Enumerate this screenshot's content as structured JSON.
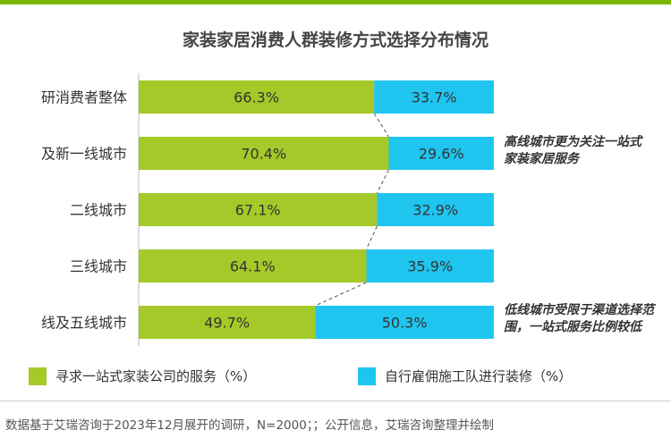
{
  "chart_data": {
    "type": "bar",
    "stacked": true,
    "orientation": "horizontal",
    "title": "家装家居消费人群装修方式选择分布情况",
    "categories": [
      "研消费者整体",
      "及新一线城市",
      "二线城市",
      "三线城市",
      "线及五线城市"
    ],
    "series": [
      {
        "name": "寻求一站式家装公司的服务（%）",
        "color": "#a5c928",
        "values": [
          66.3,
          70.4,
          67.1,
          64.1,
          49.7
        ],
        "labels": [
          "66.3%",
          "70.4%",
          "67.1%",
          "64.1%",
          "49.7%"
        ]
      },
      {
        "name": "自行雇佣施工队进行装修（%）",
        "color": "#1fc5ef",
        "values": [
          33.7,
          29.6,
          32.9,
          35.9,
          50.3
        ],
        "labels": [
          "33.7%",
          "29.6%",
          "32.9%",
          "35.9%",
          "50.3%"
        ]
      }
    ],
    "xlim": [
      0,
      100
    ],
    "grid": false,
    "legend_position": "bottom"
  },
  "annotations": [
    {
      "line1": "高线城市更为关注一站式",
      "line2": "家装家居服务"
    },
    {
      "line1": "低线城市受限于渠道选择范",
      "line2": "围，一站式服务比例较低"
    }
  ],
  "footnote": "数据基于艾瑞咨询于2023年12月展开的调研，N=2000；；公开信息，艾瑞咨询整理并绘制",
  "colors": {
    "accent": "#7ab800",
    "green": "#a5c928",
    "blue": "#1fc5ef"
  }
}
